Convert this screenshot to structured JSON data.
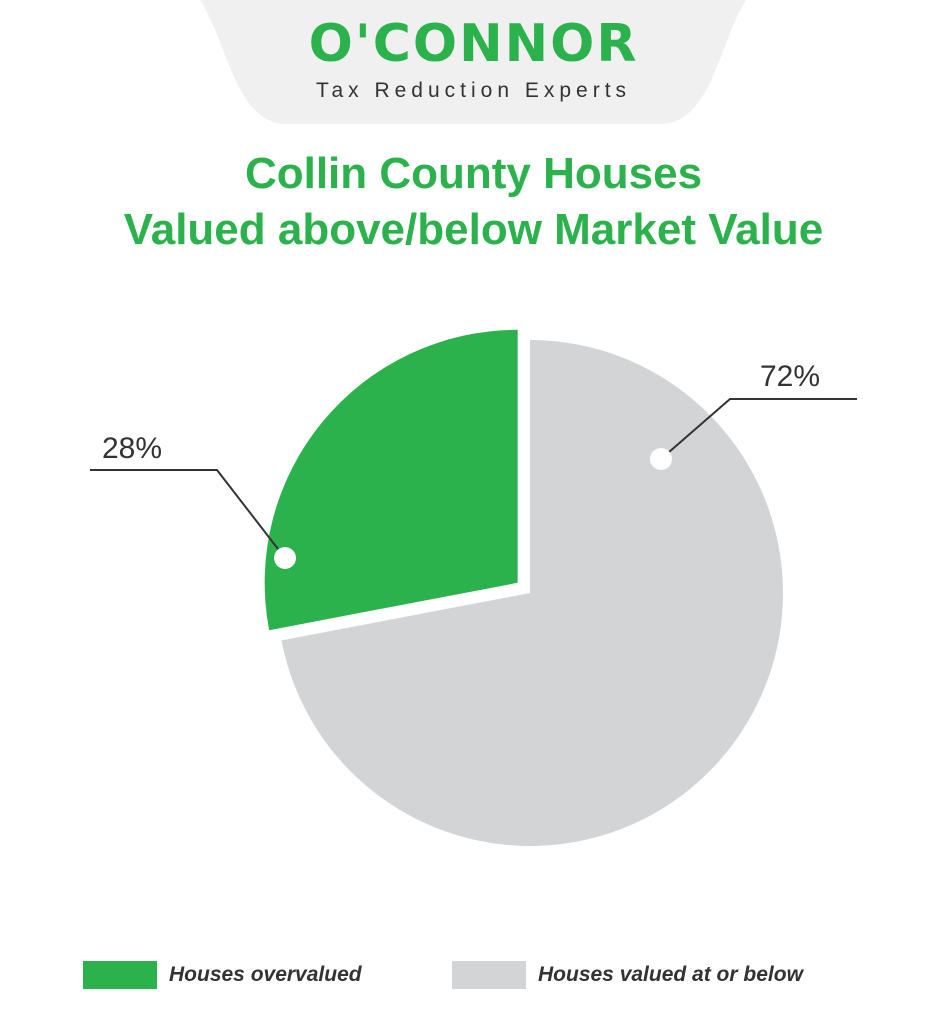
{
  "logo": {
    "wordmark": "O'CONNOR",
    "tagline": "Tax Reduction Experts",
    "brand_color": "#2bb24c",
    "tab_color": "#f0f0f0"
  },
  "chart_data": {
    "type": "pie",
    "title_lines": [
      "Collin County  Houses",
      "Valued above/below Market Value"
    ],
    "categories": [
      "Houses overvalued",
      "Houses valued at or below"
    ],
    "values": [
      28,
      72
    ],
    "value_labels": [
      "28%",
      "72%"
    ],
    "colors": [
      "#2bb24c",
      "#d3d4d6"
    ],
    "legend_position": "bottom",
    "exploded_slice": "Houses overvalued"
  }
}
